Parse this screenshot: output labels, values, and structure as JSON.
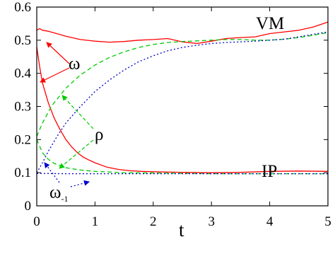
{
  "chart_data": {
    "type": "line",
    "xlabel": "t",
    "ylabel": "",
    "xlim": [
      0,
      5
    ],
    "ylim": [
      0,
      0.6
    ],
    "xticks": [
      "0",
      "1",
      "2",
      "3",
      "4",
      "5"
    ],
    "yticks": [
      "0",
      "0.1",
      "0.2",
      "0.3",
      "0.4",
      "0.5",
      "0.6"
    ],
    "grid": false,
    "legend": "none",
    "annotations": {
      "vm": "VM",
      "ip": "IP",
      "omega": "ω",
      "rho": "ρ",
      "omega_minus1_base": "ω",
      "omega_minus1_sub": "-1"
    },
    "colors": {
      "omega": "#ff0000",
      "rho": "#00cc00",
      "omega_minus1": "#0000cc"
    },
    "series": [
      {
        "id": "omega_vm",
        "style": "solid",
        "color": "#ff0000",
        "x": [
          0,
          0.05,
          0.1,
          0.2,
          0.3,
          0.5,
          0.75,
          1.0,
          1.25,
          1.5,
          1.75,
          2.0,
          2.25,
          2.5,
          2.75,
          3.0,
          3.25,
          3.5,
          3.75,
          4.0,
          4.25,
          4.5,
          4.75,
          5.0
        ],
        "y": [
          0.53,
          0.535,
          0.53,
          0.527,
          0.522,
          0.512,
          0.502,
          0.497,
          0.494,
          0.496,
          0.5,
          0.502,
          0.505,
          0.495,
          0.49,
          0.497,
          0.505,
          0.508,
          0.51,
          0.52,
          0.525,
          0.53,
          0.54,
          0.555
        ]
      },
      {
        "id": "omega_ip",
        "style": "solid",
        "color": "#ff0000",
        "x": [
          0,
          0.05,
          0.1,
          0.2,
          0.3,
          0.4,
          0.5,
          0.6,
          0.7,
          0.8,
          0.9,
          1.0,
          1.2,
          1.4,
          1.6,
          1.8,
          2.0,
          2.5,
          3.0,
          3.5,
          4.0,
          4.5,
          5.0
        ],
        "y": [
          0.48,
          0.42,
          0.37,
          0.31,
          0.265,
          0.23,
          0.2,
          0.178,
          0.16,
          0.147,
          0.138,
          0.13,
          0.117,
          0.11,
          0.106,
          0.104,
          0.103,
          0.101,
          0.1,
          0.101,
          0.104,
          0.105,
          0.104
        ]
      },
      {
        "id": "rho_vm",
        "style": "dashed",
        "color": "#00cc00",
        "x": [
          0,
          0.1,
          0.25,
          0.5,
          0.75,
          1.0,
          1.25,
          1.5,
          1.75,
          2.0,
          2.25,
          2.5,
          2.75,
          3.0,
          3.25,
          3.5,
          3.75,
          4.0,
          4.25,
          4.5,
          4.75,
          5.0
        ],
        "y": [
          0.21,
          0.25,
          0.3,
          0.355,
          0.395,
          0.425,
          0.448,
          0.465,
          0.478,
          0.487,
          0.493,
          0.496,
          0.498,
          0.5,
          0.502,
          0.502,
          0.5,
          0.5,
          0.503,
          0.508,
          0.515,
          0.523
        ]
      },
      {
        "id": "rho_ip",
        "style": "dashed",
        "color": "#00cc00",
        "x": [
          0,
          0.1,
          0.2,
          0.3,
          0.5,
          0.75,
          1.0,
          1.25,
          1.5,
          2.0,
          2.5,
          3.0,
          3.5,
          4.0,
          4.5,
          5.0
        ],
        "y": [
          0.2,
          0.16,
          0.14,
          0.128,
          0.115,
          0.108,
          0.104,
          0.102,
          0.1,
          0.099,
          0.098,
          0.097,
          0.097,
          0.097,
          0.097,
          0.097
        ]
      },
      {
        "id": "omega_minus1_vm",
        "style": "dotted",
        "color": "#0000cc",
        "x": [
          0,
          0.1,
          0.2,
          0.35,
          0.5,
          0.75,
          1.0,
          1.25,
          1.5,
          1.75,
          2.0,
          2.25,
          2.5,
          2.75,
          3.0,
          3.25,
          3.5,
          3.75,
          4.0,
          4.25,
          4.5,
          4.75,
          5.0
        ],
        "y": [
          0.1,
          0.13,
          0.165,
          0.21,
          0.25,
          0.3,
          0.345,
          0.38,
          0.41,
          0.435,
          0.453,
          0.468,
          0.478,
          0.485,
          0.49,
          0.493,
          0.495,
          0.497,
          0.5,
          0.503,
          0.51,
          0.518,
          0.525
        ]
      },
      {
        "id": "omega_minus1_ip",
        "style": "dotted",
        "color": "#0000cc",
        "x": [
          0,
          0.5,
          1.0,
          1.5,
          2.0,
          2.5,
          3.0,
          3.5,
          4.0,
          4.5,
          5.0
        ],
        "y": [
          0.098,
          0.097,
          0.097,
          0.097,
          0.097,
          0.097,
          0.097,
          0.097,
          0.097,
          0.097,
          0.097
        ]
      }
    ]
  }
}
